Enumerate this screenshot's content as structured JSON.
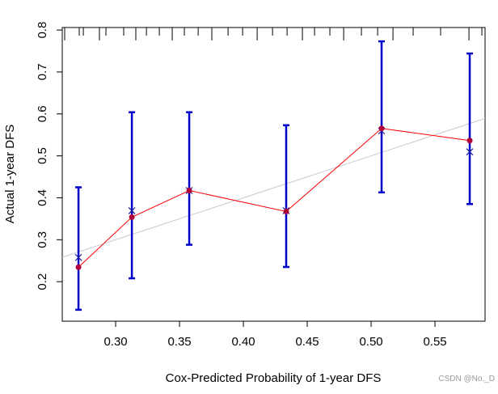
{
  "chart_data": {
    "type": "calibration",
    "xlabel": "Cox-Predicted Probability of 1-year DFS",
    "ylabel": "Actual 1-year DFS",
    "watermark": "CSDN @No._D",
    "x": [
      0.2709,
      0.3127,
      0.3576,
      0.4335,
      0.5082,
      0.5772
    ],
    "observed": [
      0.2346,
      0.3538,
      0.4173,
      0.3673,
      0.5654,
      0.5365
    ],
    "corrected": [
      0.2577,
      0.3692,
      0.4173,
      0.3692,
      0.5596,
      0.5096
    ],
    "lower": [
      0.133,
      0.208,
      0.288,
      0.235,
      0.413,
      0.385
    ],
    "upper": [
      0.425,
      0.604,
      0.604,
      0.573,
      0.773,
      0.744
    ],
    "rug": [
      0.2601,
      0.2715,
      0.2747,
      0.2873,
      0.2924,
      0.3063,
      0.3158,
      0.3241,
      0.3342,
      0.3443,
      0.3538,
      0.3646,
      0.3753,
      0.388,
      0.3994,
      0.4108,
      0.4228,
      0.4342,
      0.4462,
      0.4557,
      0.4677,
      0.4785,
      0.4924,
      0.5051,
      0.5171,
      0.5329,
      0.5544,
      0.5766,
      0.5867
    ],
    "line_color": "#ff0000",
    "point_color": "#b0003a",
    "cross_color": "#1a1aa0",
    "errorbar_color": "#0000cc",
    "ideal_color": "#c8c8d8",
    "xlim": [
      0.2582,
      0.5892
    ],
    "ylim": [
      0.1058,
      0.806
    ],
    "xticks": [
      {
        "value": 0.3,
        "label": "0.30"
      },
      0.35,
      {
        "value": 0.4,
        "label": "0.40"
      },
      0.45,
      {
        "value": 0.5,
        "label": "0.50"
      },
      0.55
    ],
    "yticks": [
      0.2,
      0.3,
      0.4,
      0.5,
      0.6,
      0.7,
      0.8
    ]
  }
}
